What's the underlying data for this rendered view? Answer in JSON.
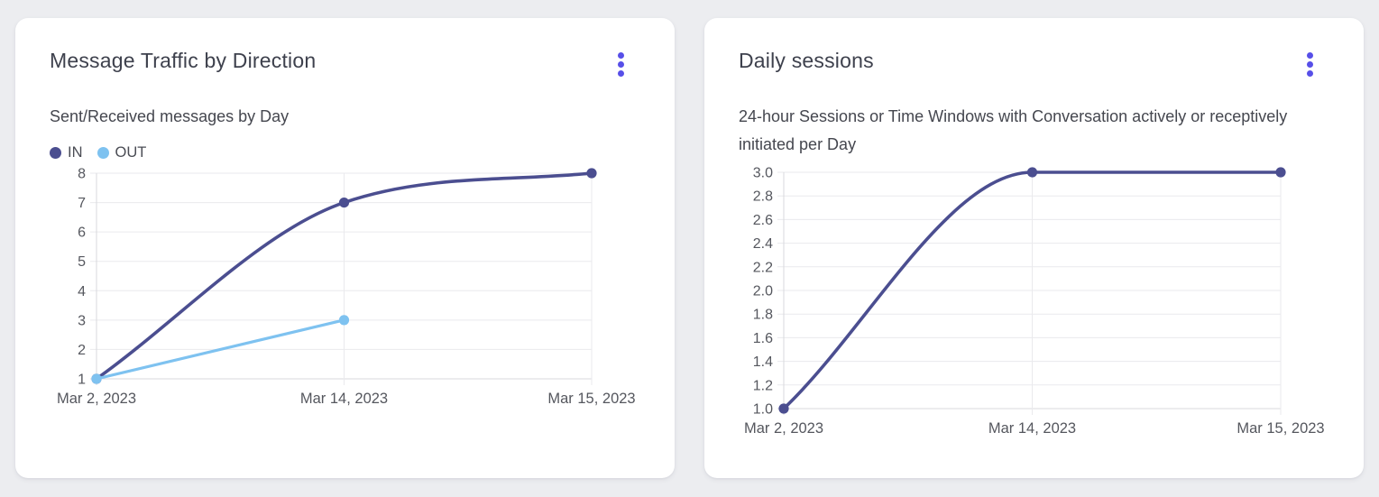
{
  "style": {
    "page_background": "#ECEDF0",
    "card_background": "#FFFFFF",
    "menu_accent": "#574FE8",
    "title_color": "#3E414D",
    "subtitle_color": "#45474F",
    "tick_text_color": "#55575E",
    "grid_color": "#EAEAED",
    "axis_color": "#D8D9DD",
    "series_in_color": "#4B4E90",
    "series_out_color": "#7EC2F0"
  },
  "chart_data": [
    {
      "type": "line",
      "title": "Message Traffic by Direction",
      "subtitle": "Sent/Received messages by Day",
      "categories": [
        "Mar 2, 2023",
        "Mar 14, 2023",
        "Mar 15, 2023"
      ],
      "series": [
        {
          "name": "IN",
          "color": "#4B4E90",
          "values": [
            1,
            7,
            8
          ]
        },
        {
          "name": "OUT",
          "color": "#7EC2F0",
          "values": [
            1,
            3,
            null
          ]
        }
      ],
      "ylim": [
        1,
        8
      ],
      "yticks": [
        "1",
        "2",
        "3",
        "4",
        "5",
        "6",
        "7",
        "8"
      ],
      "xlabel": "",
      "ylabel": "",
      "grid": true,
      "smooth": true,
      "legend": true,
      "legend_position": "top-left"
    },
    {
      "type": "line",
      "title": "Daily sessions",
      "subtitle": "24-hour Sessions or Time Windows with Conversation actively or receptively initiated per Day",
      "categories": [
        "Mar 2, 2023",
        "Mar 14, 2023",
        "Mar 15, 2023"
      ],
      "series": [
        {
          "color": "#4B4E90",
          "values": [
            1.0,
            3.0,
            3.0
          ]
        }
      ],
      "ylim": [
        1.0,
        3.0
      ],
      "yticks": [
        "1.0",
        "1.2",
        "1.4",
        "1.6",
        "1.8",
        "2.0",
        "2.2",
        "2.4",
        "2.6",
        "2.8",
        "3.0"
      ],
      "xlabel": "",
      "ylabel": "",
      "grid": true,
      "smooth": true,
      "legend": false,
      "legend_position": "none"
    }
  ]
}
